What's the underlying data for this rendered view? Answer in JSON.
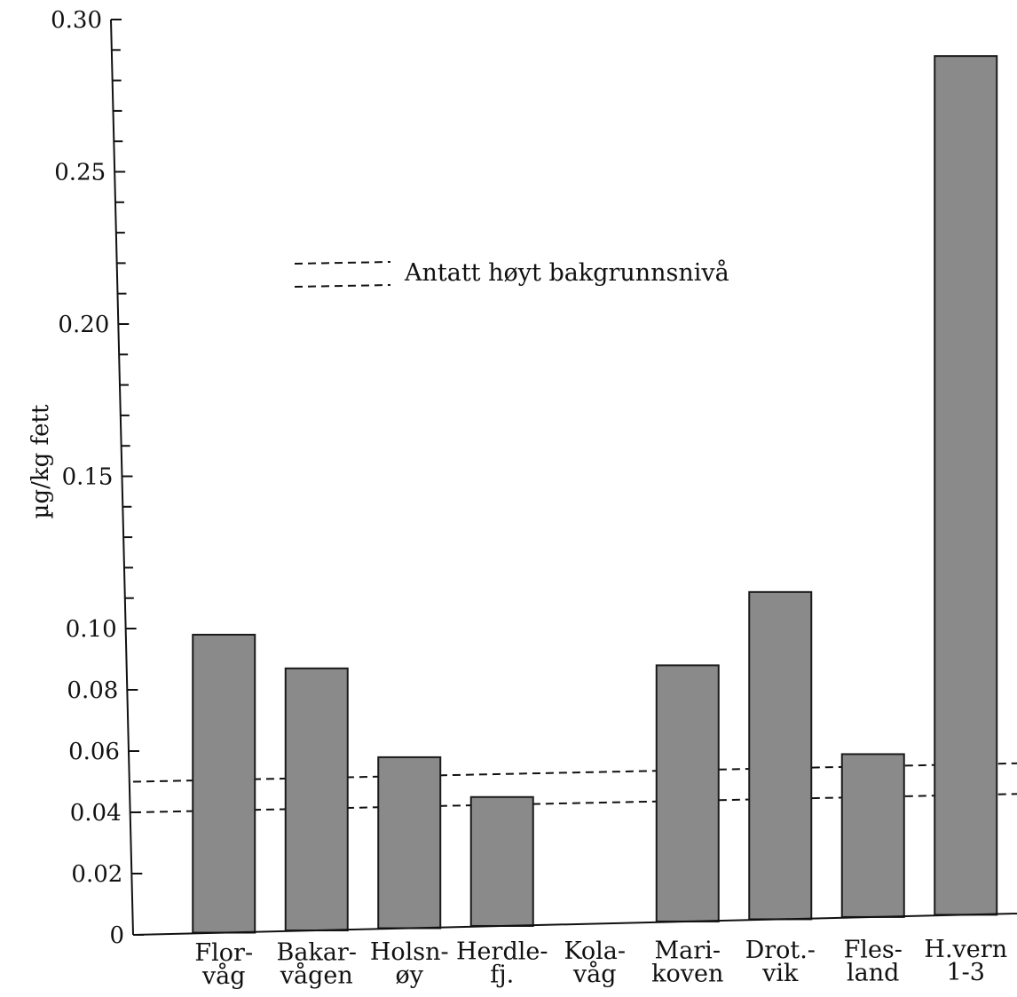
{
  "chart_data": {
    "type": "bar",
    "ylabel": "µg/kg fett",
    "categories": [
      [
        "Flor-",
        "våg"
      ],
      [
        "Bakar-",
        "vågen"
      ],
      [
        "Holsn-",
        "øy"
      ],
      [
        "Herdle-",
        "fj."
      ],
      [
        "Kola-",
        "våg"
      ],
      [
        "Mari-",
        "koven"
      ],
      [
        "Drot.-",
        "vik"
      ],
      [
        "Fles-",
        "land"
      ],
      [
        "H.vern",
        "1-3"
      ]
    ],
    "values": [
      0.098,
      0.087,
      0.058,
      0.045,
      null,
      0.088,
      0.112,
      0.059,
      0.288
    ],
    "y_axis": {
      "ticks": [
        {
          "value": 0,
          "label": "0"
        },
        {
          "value": 0.02,
          "label": "0.02"
        },
        {
          "value": 0.04,
          "label": "0.04"
        },
        {
          "value": 0.06,
          "label": "0.06"
        },
        {
          "value": 0.08,
          "label": "0.08"
        },
        {
          "value": 0.1,
          "label": "0.10"
        },
        {
          "value": 0.15,
          "label": "0.15"
        },
        {
          "value": 0.2,
          "label": "0.20"
        },
        {
          "value": 0.25,
          "label": "0.25"
        },
        {
          "value": 0.3,
          "label": "0.30"
        }
      ],
      "scale": "broken: linear 0–0.10, compressed linear 0.10–0.30",
      "minor_step_upper": 0.01,
      "ylim": [
        0,
        0.3
      ]
    },
    "reference_lines": {
      "legend_label": "Antatt høyt bakgrunnsnivå",
      "lines": [
        {
          "y_start": 0.05,
          "y_end": 0.056
        },
        {
          "y_start": 0.04,
          "y_end": 0.046
        }
      ]
    },
    "grid": false,
    "legend_placement": "upper-center"
  }
}
